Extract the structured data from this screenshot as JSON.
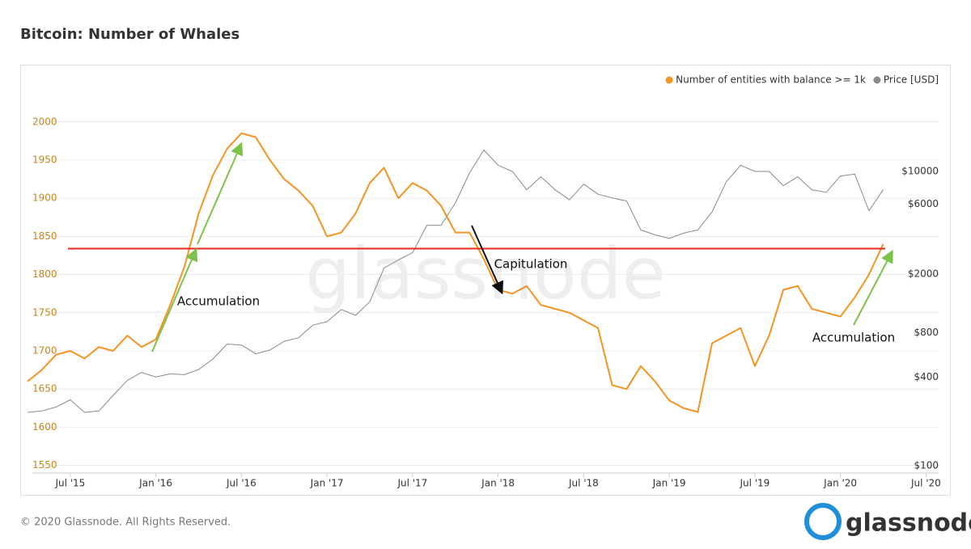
{
  "chart_data": {
    "type": "line",
    "title": "Bitcoin: Number of Whales",
    "x": [
      "2015-04",
      "2015-05",
      "2015-06",
      "2015-07",
      "2015-08",
      "2015-09",
      "2015-10",
      "2015-11",
      "2015-12",
      "2016-01",
      "2016-02",
      "2016-03",
      "2016-04",
      "2016-05",
      "2016-06",
      "2016-07",
      "2016-08",
      "2016-09",
      "2016-10",
      "2016-11",
      "2016-12",
      "2017-01",
      "2017-02",
      "2017-03",
      "2017-04",
      "2017-05",
      "2017-06",
      "2017-07",
      "2017-08",
      "2017-09",
      "2017-10",
      "2017-11",
      "2017-12",
      "2018-01",
      "2018-02",
      "2018-03",
      "2018-04",
      "2018-05",
      "2018-06",
      "2018-07",
      "2018-08",
      "2018-09",
      "2018-10",
      "2018-11",
      "2018-12",
      "2019-01",
      "2019-02",
      "2019-03",
      "2019-04",
      "2019-05",
      "2019-06",
      "2019-07",
      "2019-08",
      "2019-09",
      "2019-10",
      "2019-11",
      "2019-12",
      "2020-01",
      "2020-02",
      "2020-03",
      "2020-04"
    ],
    "series": [
      {
        "name": "Number of entities with balance >= 1k",
        "color": "#f39423",
        "values": [
          1660,
          1675,
          1695,
          1700,
          1690,
          1705,
          1700,
          1720,
          1705,
          1715,
          1760,
          1810,
          1880,
          1930,
          1965,
          1985,
          1980,
          1950,
          1925,
          1910,
          1890,
          1850,
          1855,
          1880,
          1920,
          1940,
          1900,
          1920,
          1910,
          1890,
          1855,
          1855,
          1820,
          1780,
          1775,
          1785,
          1760,
          1755,
          1750,
          1740,
          1730,
          1655,
          1650,
          1680,
          1660,
          1635,
          1625,
          1620,
          1710,
          1720,
          1730,
          1680,
          1720,
          1780,
          1785,
          1755,
          1750,
          1745,
          1770,
          1800,
          1840
        ]
      },
      {
        "name": "Price [USD]",
        "color": "#8a8a8a",
        "axis": "y2",
        "values": [
          230,
          235,
          250,
          280,
          230,
          235,
          300,
          380,
          430,
          400,
          420,
          415,
          450,
          530,
          670,
          660,
          575,
          610,
          700,
          740,
          900,
          950,
          1150,
          1050,
          1300,
          2200,
          2500,
          2800,
          4300,
          4300,
          6100,
          9800,
          14000,
          11000,
          10000,
          7500,
          9200,
          7500,
          6400,
          8200,
          7000,
          6600,
          6300,
          4000,
          3700,
          3500,
          3800,
          4000,
          5300,
          8500,
          11000,
          10000,
          10000,
          8000,
          9200,
          7500,
          7200,
          9300,
          9600,
          5400,
          7500
        ]
      }
    ],
    "xlim": [
      "2015-04",
      "2020-08"
    ],
    "xticks": [
      {
        "value": "2015-07",
        "label": "Jul '15"
      },
      {
        "value": "2016-01",
        "label": "Jan '16"
      },
      {
        "value": "2016-07",
        "label": "Jul '16"
      },
      {
        "value": "2017-01",
        "label": "Jan '17"
      },
      {
        "value": "2017-07",
        "label": "Jul '17"
      },
      {
        "value": "2018-01",
        "label": "Jan '18"
      },
      {
        "value": "2018-07",
        "label": "Jul '18"
      },
      {
        "value": "2019-01",
        "label": "Jan '19"
      },
      {
        "value": "2019-07",
        "label": "Jul '19"
      },
      {
        "value": "2020-01",
        "label": "Jan '20"
      },
      {
        "value": "2020-07",
        "label": "Jul '20"
      }
    ],
    "ylim": [
      1540,
      2040
    ],
    "yticks": [
      1550,
      1600,
      1650,
      1700,
      1750,
      1800,
      1850,
      1900,
      1950,
      2000
    ],
    "y2lim": [
      89,
      35000
    ],
    "y2scale": "log",
    "y2ticks": [
      {
        "value": 100,
        "label": "$100"
      },
      {
        "value": 400,
        "label": "$400"
      },
      {
        "value": 800,
        "label": "$800"
      },
      {
        "value": 2000,
        "label": "$2000"
      },
      {
        "value": 6000,
        "label": "$6000"
      },
      {
        "value": 10000,
        "label": "$10000"
      }
    ],
    "grid": true,
    "legend": "top-right",
    "reference_line": {
      "value": 1834,
      "color": "#e8281e"
    },
    "annotations": [
      "Accumulation",
      "Capitulation",
      "Accumulation"
    ],
    "watermark": "glassnode",
    "footer": "© 2020 Glassnode. All Rights Reserved.",
    "logo": "glassnode"
  }
}
